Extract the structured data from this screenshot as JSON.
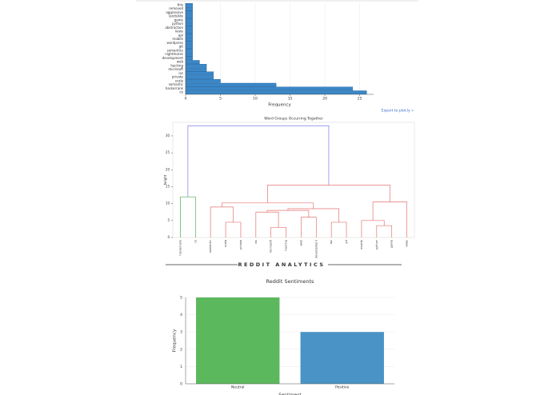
{
  "chart_data": [
    {
      "type": "barh",
      "categories": [
        "co",
        "hackerrank",
        "semantic",
        "scala",
        "private",
        "ios",
        "microsoft",
        "hacking",
        "web",
        "development",
        "nightmares",
        "semantics",
        "git",
        "wordpress",
        "mobile",
        "api",
        "news",
        "abstraction",
        "python",
        "game",
        "landslide",
        "aggressive",
        "removed",
        "this"
      ],
      "values": [
        26,
        24,
        13,
        5,
        4,
        4,
        3,
        3,
        2,
        1,
        1,
        1,
        1,
        1,
        1,
        1,
        1,
        1,
        1,
        1,
        1,
        1,
        1,
        1
      ],
      "color": "#3a87c8",
      "xlim": [
        0,
        27
      ],
      "xticks": [
        0,
        5,
        10,
        15,
        20,
        25
      ],
      "x_label": "Frequency",
      "grid": true
    },
    {
      "type": "dendrogram",
      "title": "Word Groups Occurring Together",
      "y_label": "height",
      "leaves": [
        "hackerrank",
        "co",
        "semantic",
        "scala",
        "private",
        "ios",
        "microsoft",
        "hacking",
        "web",
        "development",
        "api",
        "git",
        "mobile",
        "python",
        "game",
        "news"
      ],
      "merges": [
        {
          "left": 0,
          "right": 1,
          "height": 12,
          "color": "#4caf50"
        },
        {
          "left": 3,
          "right": 4,
          "height": 4.5,
          "color": "#e57373"
        },
        {
          "left": 2,
          "right": 17,
          "height": 9,
          "color": "#e57373"
        },
        {
          "left": 6,
          "right": 7,
          "height": 3,
          "color": "#e57373"
        },
        {
          "left": 8,
          "right": 9,
          "height": 6,
          "color": "#e57373"
        },
        {
          "left": 5,
          "right": 19,
          "height": 7.5,
          "color": "#e57373"
        },
        {
          "left": 20,
          "right": 21,
          "height": 8,
          "color": "#e57373"
        },
        {
          "left": 10,
          "right": 11,
          "height": 4.5,
          "color": "#e57373"
        },
        {
          "left": 22,
          "right": 23,
          "height": 8.5,
          "color": "#e57373"
        },
        {
          "left": 13,
          "right": 14,
          "height": 3.5,
          "color": "#e57373"
        },
        {
          "left": 12,
          "right": 25,
          "height": 5,
          "color": "#e57373"
        },
        {
          "left": 15,
          "right": 26,
          "height": 10.5,
          "color": "#e57373"
        },
        {
          "left": 18,
          "right": 24,
          "height": 10.2,
          "color": "#e57373"
        },
        {
          "left": 28,
          "right": 27,
          "height": 15.5,
          "color": "#e57373"
        },
        {
          "left": 16,
          "right": 29,
          "height": 33,
          "color": "#7b7bef"
        }
      ],
      "ylim": [
        0,
        34
      ],
      "yticks": [
        0,
        5,
        10,
        15,
        20,
        25,
        30
      ]
    },
    {
      "type": "bar",
      "title": "Reddit Sentiments",
      "categories": [
        "Neutral",
        "Positive"
      ],
      "values": [
        5,
        3
      ],
      "colors": [
        "#5cb85c",
        "#4a93c6"
      ],
      "ylim": [
        0,
        5
      ],
      "yticks": [
        0,
        1,
        2,
        3,
        4,
        5
      ],
      "x_label": "Sentiment",
      "y_label": "Frequency",
      "grid": true
    }
  ],
  "export_link": "Export to plot.ly »",
  "section_title": "REDDIT ANALYTICS"
}
